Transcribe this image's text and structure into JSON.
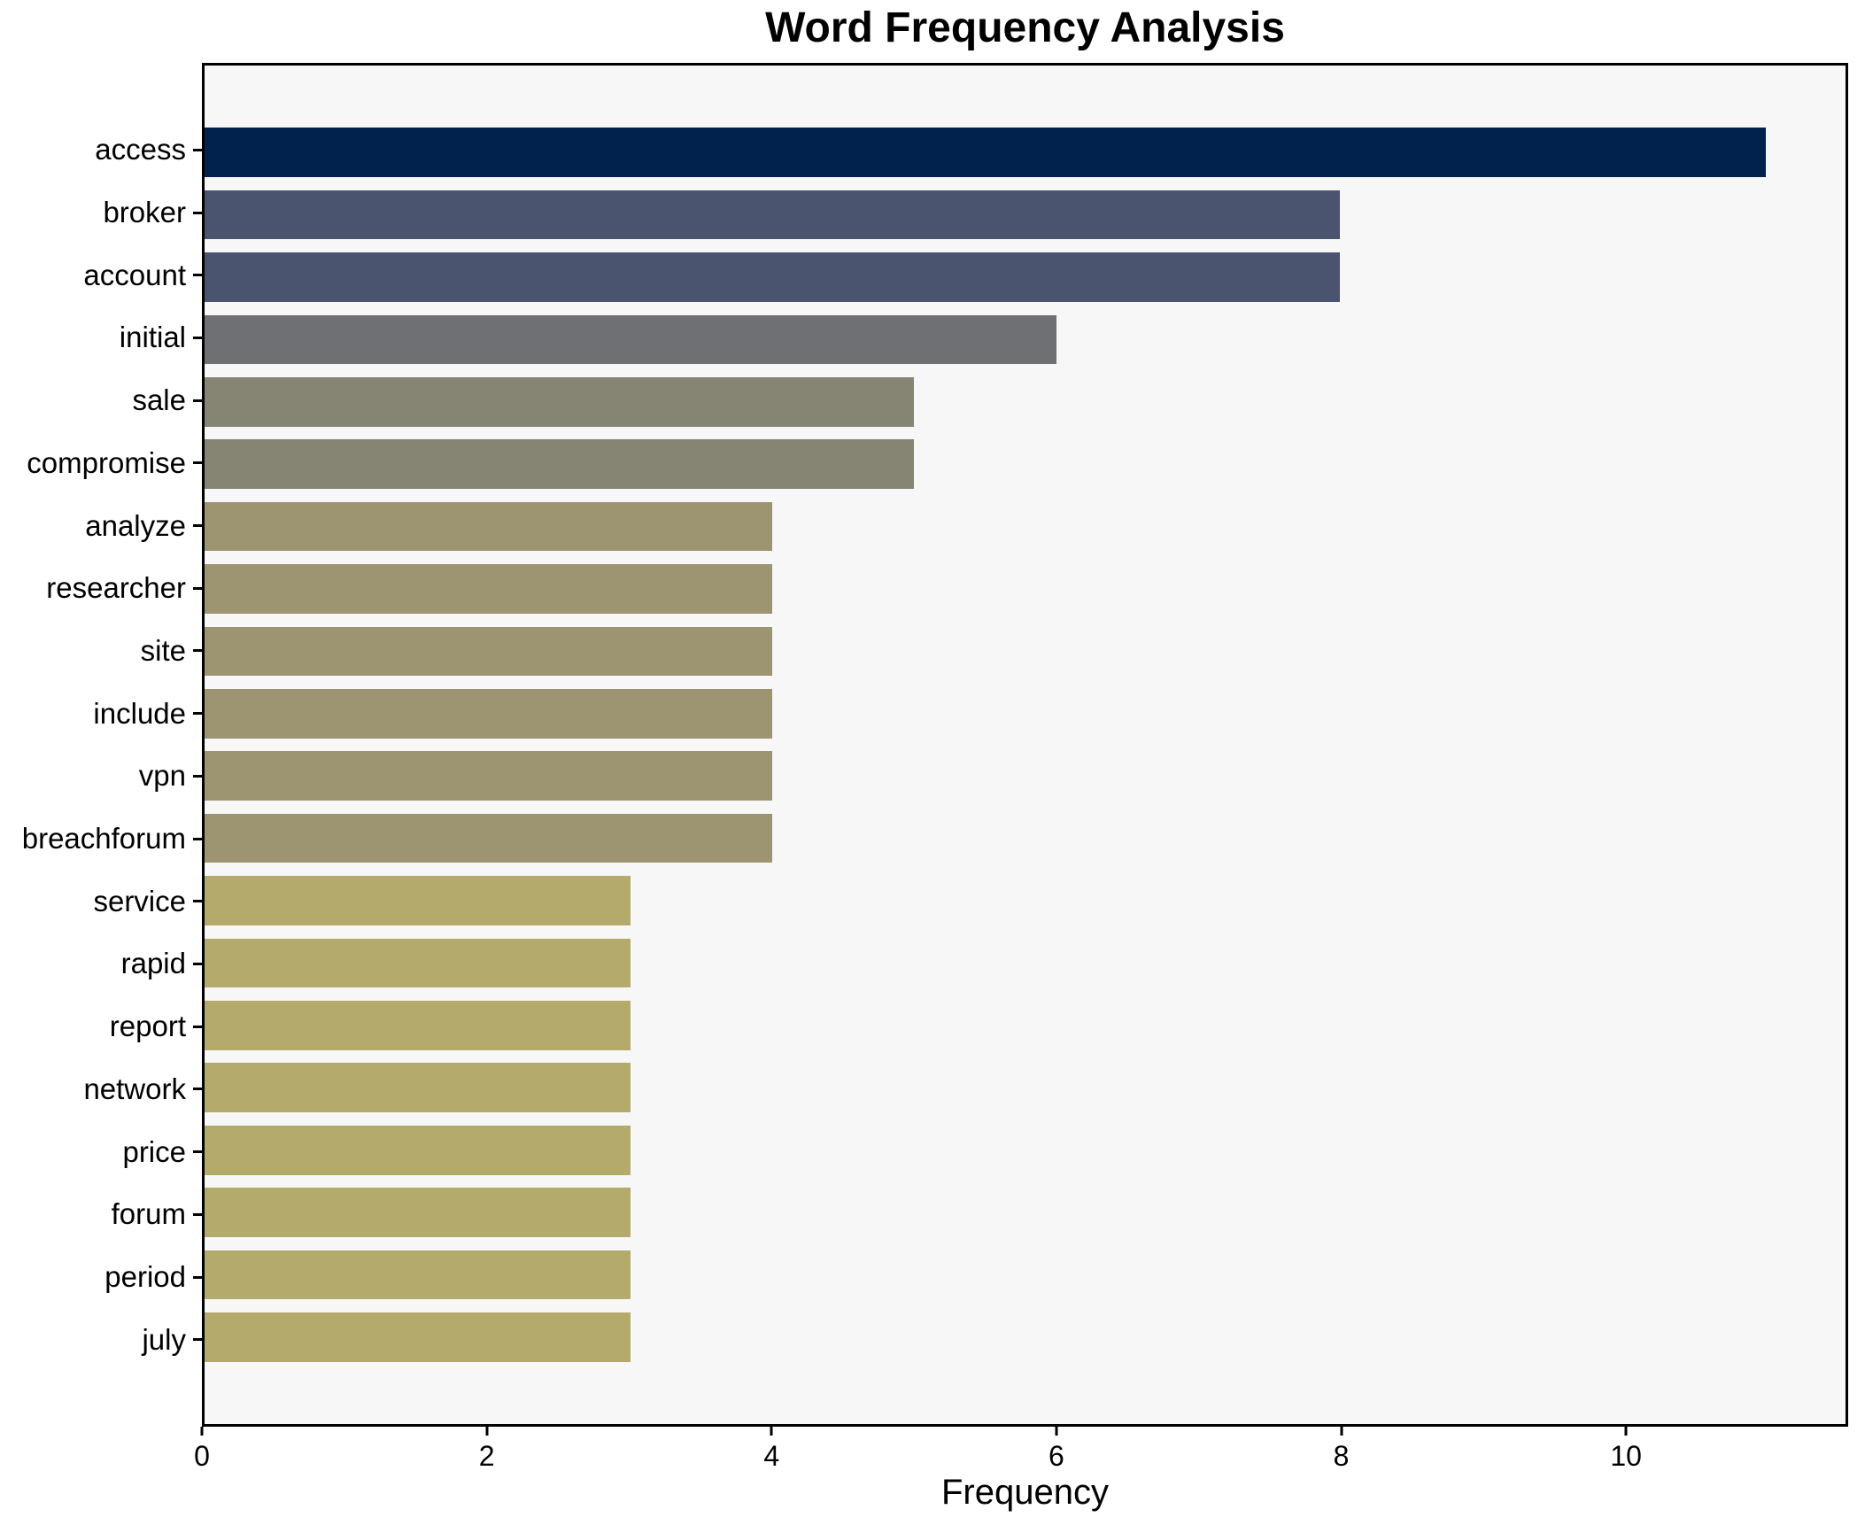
{
  "title": "Word Frequency Analysis",
  "chart_data": {
    "type": "bar",
    "orientation": "horizontal",
    "title": "Word Frequency Analysis",
    "xlabel": "Frequency",
    "ylabel": "",
    "categories": [
      "access",
      "broker",
      "account",
      "initial",
      "sale",
      "compromise",
      "analyze",
      "researcher",
      "site",
      "include",
      "vpn",
      "breachforum",
      "service",
      "rapid",
      "report",
      "network",
      "price",
      "forum",
      "period",
      "july"
    ],
    "values": [
      11,
      8,
      8,
      6,
      5,
      5,
      4,
      4,
      4,
      4,
      4,
      4,
      3,
      3,
      3,
      3,
      3,
      3,
      3,
      3
    ],
    "bar_colors": [
      "#02224e",
      "#4a546e",
      "#4a546e",
      "#6f7073",
      "#868573",
      "#868573",
      "#9d9572",
      "#9d9572",
      "#9d9572",
      "#9d9572",
      "#9d9572",
      "#9d9572",
      "#b4aa6c",
      "#b4aa6c",
      "#b4aa6c",
      "#b4aa6c",
      "#b4aa6c",
      "#b4aa6c",
      "#b4aa6c",
      "#b4aa6c"
    ],
    "xticks": [
      0,
      2,
      4,
      6,
      8,
      10
    ],
    "xlim": [
      0,
      11.56
    ],
    "grid": false,
    "legend": "none",
    "plot_background": "#f7f7f8",
    "figure_background": "#ffffff",
    "spine_color": "#000000"
  }
}
